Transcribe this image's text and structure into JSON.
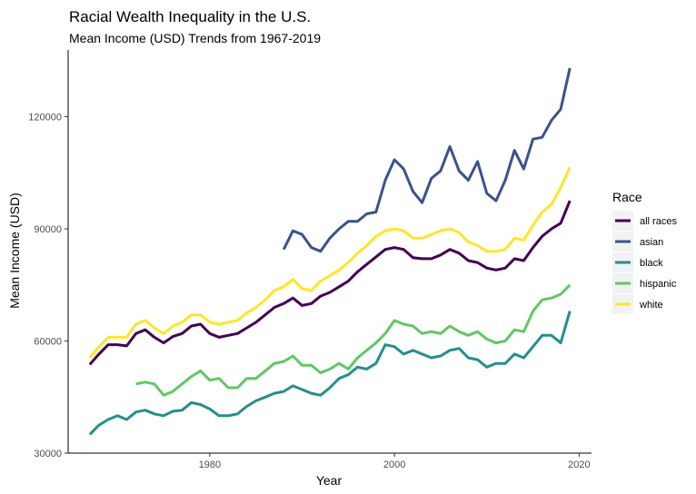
{
  "chart_data": {
    "type": "line",
    "title": "Racial Wealth Inequality in the U.S.",
    "subtitle": "Mean Income (USD) Trends from 1967-2019",
    "xlabel": "Year",
    "ylabel": "Mean Income (USD)",
    "xlim": [
      1967,
      2019
    ],
    "ylim": [
      30000,
      133000
    ],
    "x_ticks": [
      1980,
      2000,
      2020
    ],
    "y_ticks": [
      30000,
      60000,
      90000,
      120000
    ],
    "x_tick_labels": [
      "1980",
      "2000",
      "2020"
    ],
    "y_tick_labels": [
      "30000",
      "60000",
      "90000",
      "120000"
    ],
    "grid": false,
    "legend": {
      "title": "Race",
      "position": "right"
    },
    "series": [
      {
        "name": "all races",
        "color": "#440154",
        "x": [
          1967,
          1968,
          1969,
          1970,
          1971,
          1972,
          1973,
          1974,
          1975,
          1976,
          1977,
          1978,
          1979,
          1980,
          1981,
          1982,
          1983,
          1984,
          1985,
          1986,
          1987,
          1988,
          1989,
          1990,
          1991,
          1992,
          1993,
          1994,
          1995,
          1996,
          1997,
          1998,
          1999,
          2000,
          2001,
          2002,
          2003,
          2004,
          2005,
          2006,
          2007,
          2008,
          2009,
          2010,
          2011,
          2012,
          2013,
          2014,
          2015,
          2016,
          2017,
          2018,
          2019
        ],
        "values": [
          53700,
          56500,
          59000,
          59000,
          58700,
          62000,
          63000,
          61000,
          59500,
          61200,
          62000,
          64000,
          64500,
          62000,
          61000,
          61500,
          62000,
          63500,
          65000,
          67000,
          69000,
          70000,
          71500,
          69500,
          70000,
          72000,
          73000,
          74500,
          76000,
          78500,
          80500,
          82500,
          84500,
          85000,
          84500,
          82300,
          82000,
          82000,
          83000,
          84500,
          83500,
          81500,
          81000,
          79500,
          79000,
          79500,
          82000,
          81500,
          85000,
          88000,
          90000,
          91500,
          97500
        ]
      },
      {
        "name": "asian",
        "color": "#3b528b",
        "x": [
          1988,
          1989,
          1990,
          1991,
          1992,
          1993,
          1994,
          1995,
          1996,
          1997,
          1998,
          1999,
          2000,
          2001,
          2002,
          2003,
          2004,
          2005,
          2006,
          2007,
          2008,
          2009,
          2010,
          2011,
          2012,
          2013,
          2014,
          2015,
          2016,
          2017,
          2018,
          2019
        ],
        "values": [
          84500,
          89500,
          88500,
          85000,
          84000,
          87500,
          90000,
          92000,
          92000,
          94000,
          94500,
          103000,
          108500,
          106000,
          100000,
          97000,
          103500,
          105500,
          112000,
          105500,
          103000,
          108000,
          99500,
          97500,
          103000,
          111000,
          106000,
          114000,
          114500,
          119000,
          122000,
          133000
        ]
      },
      {
        "name": "black",
        "color": "#21908d",
        "x": [
          1967,
          1968,
          1969,
          1970,
          1971,
          1972,
          1973,
          1974,
          1975,
          1976,
          1977,
          1978,
          1979,
          1980,
          1981,
          1982,
          1983,
          1984,
          1985,
          1986,
          1987,
          1988,
          1989,
          1990,
          1991,
          1992,
          1993,
          1994,
          1995,
          1996,
          1997,
          1998,
          1999,
          2000,
          2001,
          2002,
          2003,
          2004,
          2005,
          2006,
          2007,
          2008,
          2009,
          2010,
          2011,
          2012,
          2013,
          2014,
          2015,
          2016,
          2017,
          2018,
          2019
        ],
        "values": [
          35000,
          37500,
          39000,
          40000,
          39000,
          41000,
          41500,
          40500,
          40000,
          41200,
          41500,
          43500,
          43000,
          41800,
          40000,
          40000,
          40500,
          42500,
          44000,
          45000,
          46000,
          46500,
          48000,
          47000,
          46000,
          45500,
          47500,
          50000,
          51000,
          53000,
          52500,
          54000,
          59000,
          58500,
          56500,
          57500,
          56500,
          55500,
          56000,
          57500,
          58000,
          55500,
          55000,
          53000,
          54000,
          54000,
          56500,
          55500,
          58500,
          61500,
          61500,
          59500,
          68000
        ]
      },
      {
        "name": "hispanic",
        "color": "#5ec962",
        "x": [
          1972,
          1973,
          1974,
          1975,
          1976,
          1977,
          1978,
          1979,
          1980,
          1981,
          1982,
          1983,
          1984,
          1985,
          1986,
          1987,
          1988,
          1989,
          1990,
          1991,
          1992,
          1993,
          1994,
          1995,
          1996,
          1997,
          1998,
          1999,
          2000,
          2001,
          2002,
          2003,
          2004,
          2005,
          2006,
          2007,
          2008,
          2009,
          2010,
          2011,
          2012,
          2013,
          2014,
          2015,
          2016,
          2017,
          2018,
          2019
        ],
        "values": [
          48500,
          49000,
          48500,
          45500,
          46500,
          48500,
          50500,
          52000,
          49500,
          50000,
          47500,
          47500,
          50000,
          50000,
          52000,
          54000,
          54500,
          56000,
          53500,
          53500,
          51500,
          52500,
          54000,
          52500,
          55500,
          57500,
          59500,
          62000,
          65500,
          64500,
          64000,
          62000,
          62500,
          62000,
          64000,
          62500,
          61500,
          62500,
          60500,
          59500,
          60000,
          63000,
          62500,
          68000,
          71000,
          71500,
          72500,
          75000
        ]
      },
      {
        "name": "white",
        "color": "#fde725",
        "x": [
          1967,
          1968,
          1969,
          1970,
          1971,
          1972,
          1973,
          1974,
          1975,
          1976,
          1977,
          1978,
          1979,
          1980,
          1981,
          1982,
          1983,
          1984,
          1985,
          1986,
          1987,
          1988,
          1989,
          1990,
          1991,
          1992,
          1993,
          1994,
          1995,
          1996,
          1997,
          1998,
          1999,
          2000,
          2001,
          2002,
          2003,
          2004,
          2005,
          2006,
          2007,
          2008,
          2009,
          2010,
          2011,
          2012,
          2013,
          2014,
          2015,
          2016,
          2017,
          2018,
          2019
        ],
        "values": [
          55500,
          58500,
          61000,
          61000,
          61000,
          64500,
          65500,
          63500,
          62000,
          64000,
          65000,
          67000,
          67000,
          65000,
          64500,
          65000,
          65500,
          67500,
          69000,
          71000,
          73500,
          74500,
          76500,
          74000,
          73500,
          76000,
          77500,
          79000,
          81000,
          83500,
          85500,
          88000,
          89500,
          90000,
          89500,
          87500,
          87500,
          88500,
          89500,
          90000,
          89000,
          86500,
          85500,
          84000,
          84000,
          84500,
          87500,
          87000,
          91000,
          94500,
          96500,
          101000,
          106500
        ]
      }
    ]
  }
}
